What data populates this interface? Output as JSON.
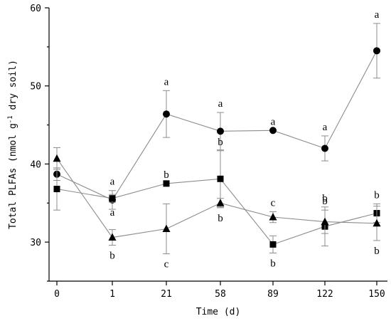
{
  "chart_data": {
    "type": "line",
    "x_label": "Time (d)",
    "y_label": "Total PLFAs (nmol g",
    "y_label_sup": "-1",
    "y_label_tail": " dry soil)",
    "categories": [
      "0",
      "1",
      "21",
      "58",
      "89",
      "122",
      "150"
    ],
    "y_ticks": [
      "30",
      "40",
      "50",
      "60"
    ],
    "ylim": [
      25,
      60
    ],
    "y_tick_values": [
      30,
      40,
      50,
      60
    ],
    "grid": false,
    "series": [
      {
        "marker": "circle",
        "values": [
          38.7,
          35.4,
          46.4,
          44.2,
          44.3,
          42.0,
          54.5
        ],
        "errors": [
          0.8,
          1.2,
          3.0,
          2.4,
          0.0,
          1.6,
          3.5
        ],
        "letters": [
          "",
          "a",
          "a",
          "a",
          "a",
          "a",
          "a"
        ],
        "letter_pos": [
          "",
          "above",
          "above",
          "above",
          "above",
          "above",
          "above"
        ]
      },
      {
        "marker": "square",
        "values": [
          36.8,
          35.6,
          37.5,
          38.1,
          29.7,
          32.0,
          33.7
        ],
        "errors": [
          2.7,
          0.5,
          0.0,
          3.6,
          1.1,
          2.5,
          1.2
        ],
        "letters": [
          "",
          "a",
          "b",
          "b",
          "b",
          "b",
          "b"
        ],
        "letter_pos": [
          "",
          "below",
          "above",
          "above",
          "below",
          "above",
          "above"
        ]
      },
      {
        "marker": "triangle",
        "values": [
          40.7,
          30.6,
          31.7,
          35.0,
          33.2,
          32.6,
          32.4
        ],
        "errors": [
          1.4,
          1.0,
          3.2,
          0.6,
          0.7,
          1.5,
          2.2
        ],
        "letters": [
          "",
          "b",
          "c",
          "b",
          "c",
          "b",
          "b"
        ],
        "letter_pos": [
          "",
          "below",
          "below",
          "below",
          "above",
          "above",
          "below"
        ]
      }
    ]
  }
}
